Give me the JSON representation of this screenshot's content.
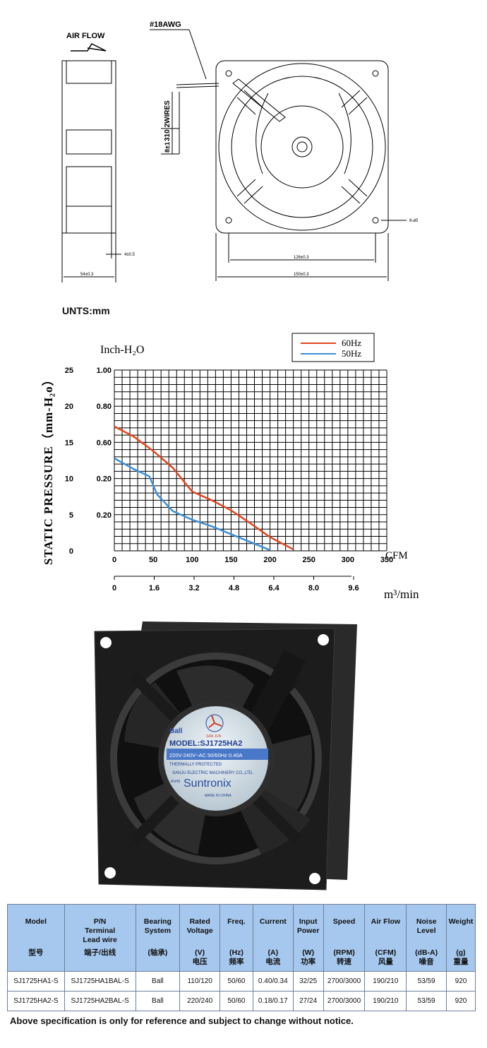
{
  "drawing": {
    "airflow_label": "AIR FLOW",
    "wire_gauge": "#18AWG",
    "wires_label": "310 2WIRES",
    "strip_label": "8±1",
    "thickness_label": "4±0.5",
    "depth_label": "54±0.3",
    "hole_pitch_label": "126±0.3",
    "width_label": "150±0.3",
    "hole_label": "8-ø5"
  },
  "units_note": "UNTS:mm",
  "chart_data": {
    "type": "line",
    "title": "Inch-H₂O",
    "ylabel": "STATIC PRESSURE（mm-H₂o）",
    "xlabel": "CFM",
    "x2label": "m³/min",
    "xlim": [
      0,
      350
    ],
    "ylim": [
      0,
      25
    ],
    "grid": true,
    "legend_position": "top-right",
    "x_ticks": [
      "0",
      "50",
      "100",
      "150",
      "200",
      "250",
      "300",
      "350"
    ],
    "x2_ticks": [
      "0",
      "1.6",
      "3.2",
      "4.8",
      "6.4",
      "8.0",
      "9.6"
    ],
    "y_ticks_mm": [
      "25",
      "20",
      "15",
      "10",
      "5",
      "0"
    ],
    "y_ticks_inch": [
      "1.00",
      "0.80",
      "0.60",
      "0.20",
      "0.20"
    ],
    "series": [
      {
        "name": "60Hz",
        "color": "#e2461d",
        "x": [
          0,
          25,
          50,
          75,
          100,
          125,
          150,
          175,
          200,
          230
        ],
        "y": [
          17.2,
          15.8,
          13.8,
          11.5,
          8.2,
          7.0,
          5.6,
          3.8,
          1.9,
          0.2
        ]
      },
      {
        "name": "50Hz",
        "color": "#3a8fd8",
        "x": [
          0,
          25,
          45,
          55,
          75,
          100,
          125,
          150,
          175,
          200
        ],
        "y": [
          12.8,
          11.3,
          10.3,
          7.8,
          5.5,
          4.3,
          3.4,
          2.3,
          1.2,
          0.1
        ]
      }
    ]
  },
  "fan_label": {
    "bearing": "Ball",
    "brand_mark": "SAN JUN",
    "model": "MODEL:SJ1725HA2",
    "rating": "220V-240V~AC  50/60Hz 0.40A",
    "protection": "THERMALLY PROTECTED",
    "maker": "SANJU ELECTRIC MACHINERY CO.,LTD.",
    "brand": "Suntronix",
    "rohs": "RoHS",
    "origin": "MADE IN CHINA"
  },
  "spec_table": {
    "headers": [
      {
        "en": "Model",
        "unit": "",
        "cn": "型号"
      },
      {
        "en": "P/N\nTerminal\nLead wire",
        "unit": "",
        "cn": "端子/出线"
      },
      {
        "en": "Bearing\nSystem",
        "unit": "",
        "cn": "(轴承)"
      },
      {
        "en": "Rated\nVoltage",
        "unit": "(V)",
        "cn": "电压"
      },
      {
        "en": "Freq.",
        "unit": "(Hz)",
        "cn": "频率"
      },
      {
        "en": "Current",
        "unit": "(A)",
        "cn": "电流"
      },
      {
        "en": "Input\nPower",
        "unit": "(W)",
        "cn": "功率"
      },
      {
        "en": "Speed",
        "unit": "(RPM)",
        "cn": "转速"
      },
      {
        "en": "Air Flow",
        "unit": "(CFM)",
        "cn": "风量"
      },
      {
        "en": "Noise\nLevel",
        "unit": "(dB-A)",
        "cn": "噪音"
      },
      {
        "en": "Weight",
        "unit": "(g)",
        "cn": "重量"
      }
    ],
    "rows": [
      [
        "SJ1725HA1-S",
        "SJ1725HA1BAL-S",
        "Ball",
        "110/120",
        "50/60",
        "0.40/0.34",
        "32/25",
        "2700/3000",
        "190/210",
        "53/59",
        "920"
      ],
      [
        "SJ1725HA2-S",
        "SJ1725HA2BAL-S",
        "Ball",
        "220/240",
        "50/60",
        "0.18/0.17",
        "27/24",
        "2700/3000",
        "190/210",
        "53/59",
        "920"
      ]
    ]
  },
  "disclaimer": "Above specification is only for reference and subject to change without notice."
}
